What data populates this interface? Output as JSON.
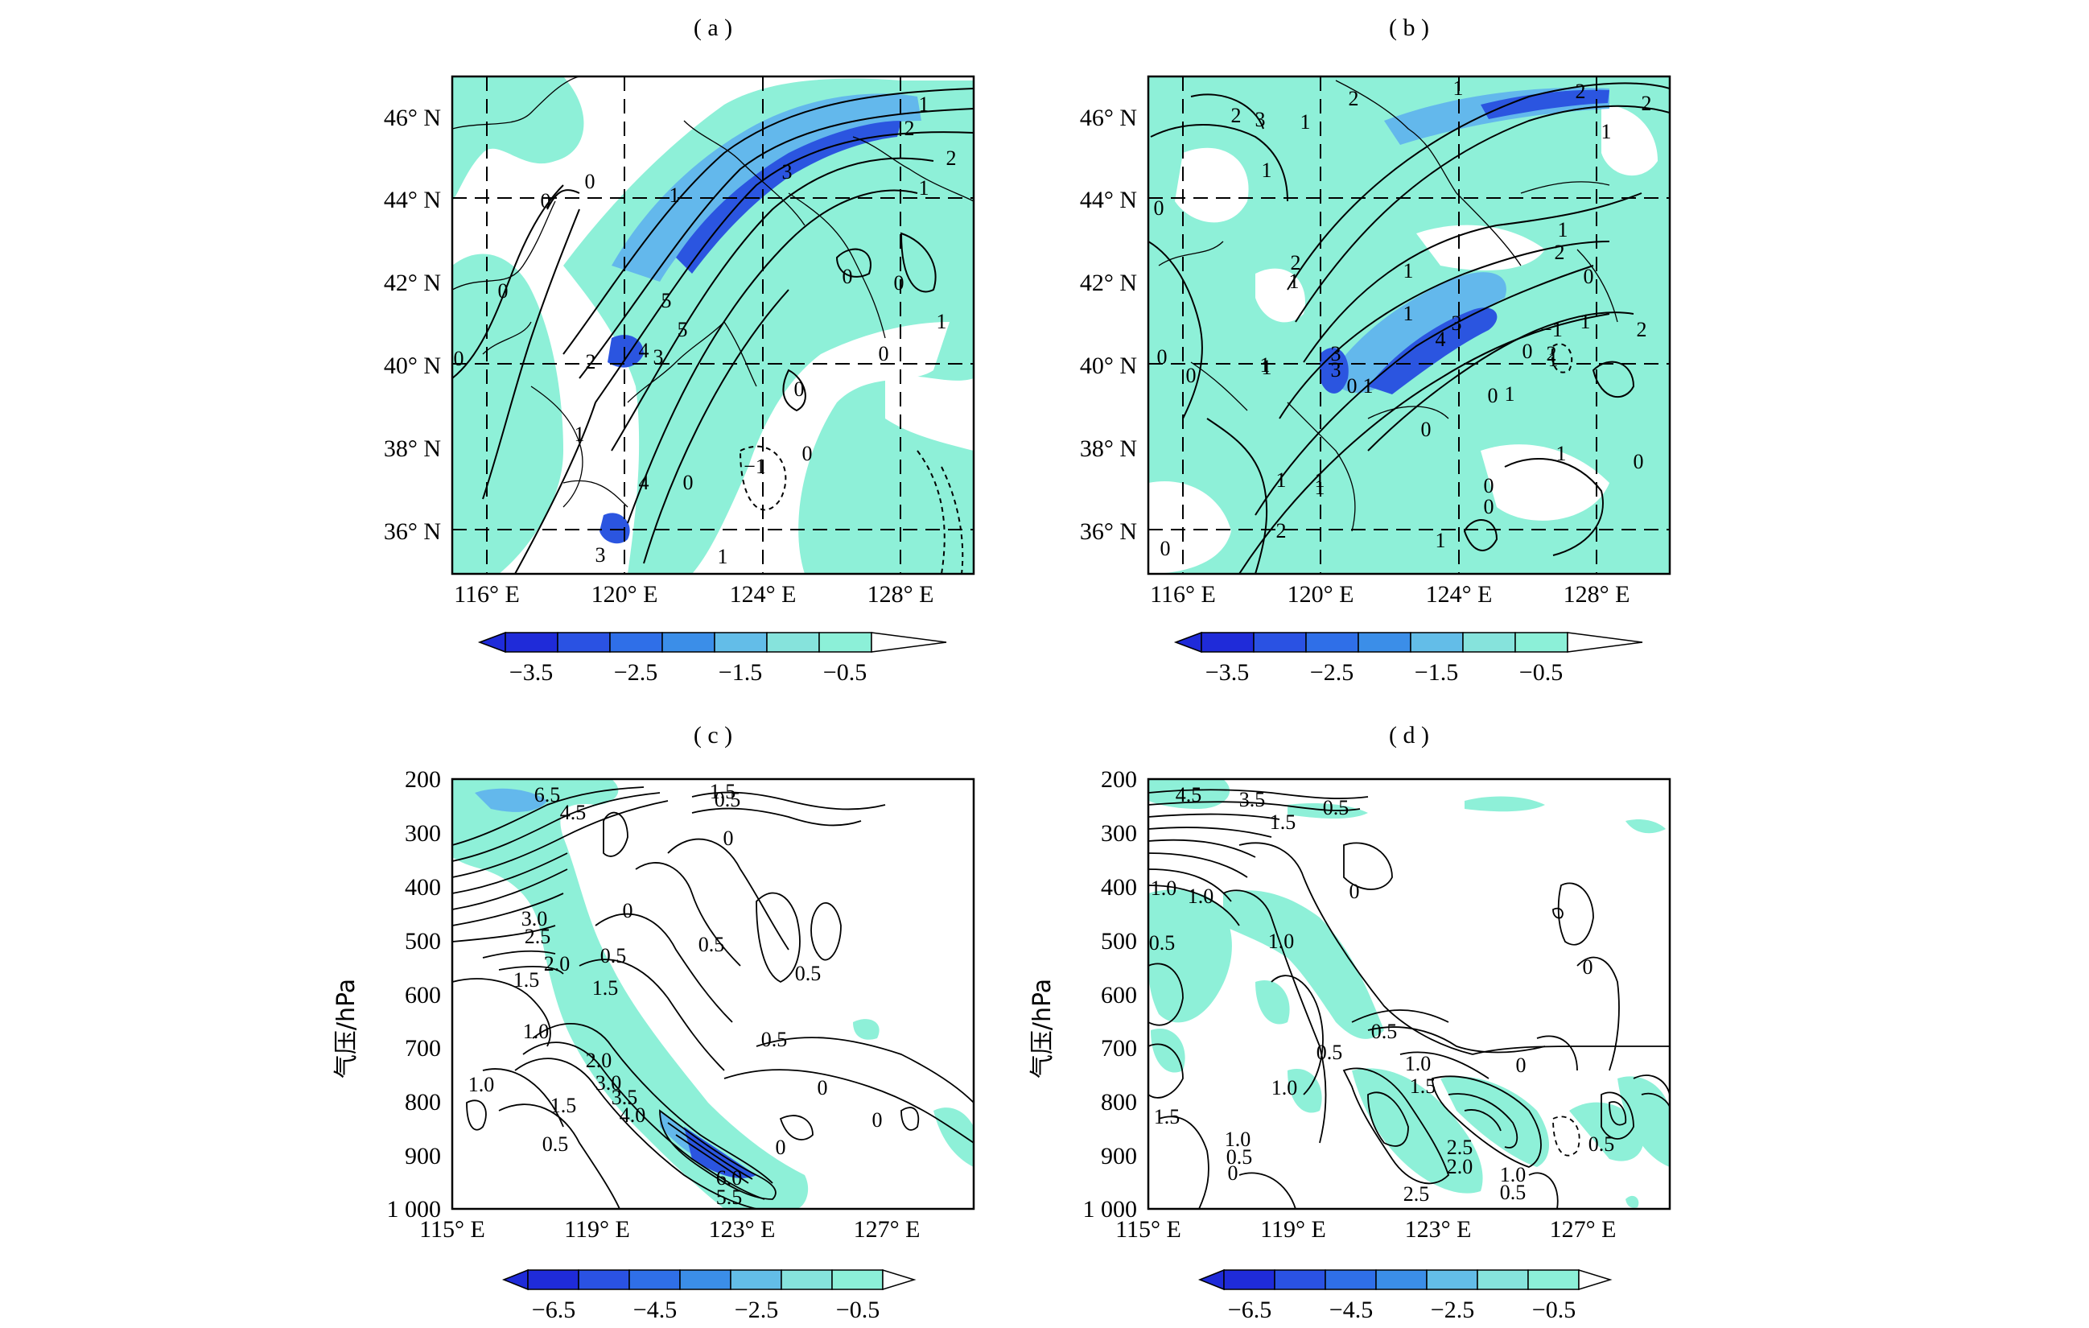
{
  "colors": {
    "levels": [
      "#1f2bd9",
      "#2a52e3",
      "#2f6fe8",
      "#3b8ee8",
      "#63bde8",
      "#86e3dc",
      "#8cf0d8"
    ],
    "shade": "#8ef0d8",
    "mid": "#63b8ec",
    "dark": "#2b55e0"
  },
  "panels": {
    "a": {
      "title": "( a )",
      "x_ticks": [
        "116° E",
        "120° E",
        "124° E",
        "128° E"
      ],
      "y_ticks": [
        "46° N",
        "44° N",
        "42° N",
        "40° N",
        "38° N",
        "36° N"
      ],
      "colorbar": [
        "−3.5",
        "−2.5",
        "−1.5",
        "−0.5"
      ],
      "contour_labels": [
        "1",
        "2",
        "2",
        "1",
        "3",
        "0",
        "0",
        "1",
        "0",
        "5",
        "0",
        "1",
        "0",
        "0",
        "5",
        "4",
        "3",
        "2",
        "0",
        "0",
        "1",
        "−1",
        "0",
        "0",
        "4",
        "3",
        "1"
      ]
    },
    "b": {
      "title": "( b )",
      "x_ticks": [
        "116° E",
        "120° E",
        "124° E",
        "128° E"
      ],
      "y_ticks": [
        "46° N",
        "44° N",
        "42° N",
        "40° N",
        "38° N",
        "36° N"
      ],
      "colorbar": [
        "−3.5",
        "−2.5",
        "−1.5",
        "−0.5"
      ],
      "contour_labels": [
        "2",
        "3",
        "1",
        "2",
        "1",
        "2",
        "1",
        "1",
        "0",
        "2",
        "1",
        "1",
        "1",
        "2",
        "2",
        "1",
        "0",
        "1",
        "3",
        "4",
        "3",
        "−1",
        "2",
        "1",
        "1",
        "2",
        "0",
        "0",
        "1",
        "3",
        "0",
        "1",
        "0",
        "1",
        "0",
        "0",
        "1",
        "1",
        "1",
        "0",
        "0",
        "1",
        "2",
        "0",
        "0",
        "1"
      ]
    },
    "c": {
      "title": "( c )",
      "y_label": "气压/hPa",
      "x_ticks": [
        "115° E",
        "119° E",
        "123° E",
        "127° E"
      ],
      "y_ticks": [
        "200",
        "300",
        "400",
        "500",
        "600",
        "700",
        "800",
        "900",
        "1 000"
      ],
      "colorbar": [
        "−6.5",
        "−4.5",
        "−2.5",
        "−0.5"
      ],
      "contour_labels": [
        "6.5",
        "4.5",
        "1.5",
        "0.5",
        "0",
        "0",
        "3.0",
        "2.5",
        "2.0",
        "1.5",
        "0.5",
        "0.5",
        "0.5",
        "1.5",
        "1.0",
        "0.5",
        "2.0",
        "3.0",
        "3.5",
        "4.0",
        "1.0",
        "1.5",
        "0.5",
        "0",
        "0",
        "6.0",
        "5.5",
        "0"
      ]
    },
    "d": {
      "title": "( d )",
      "y_label": "气压/hPa",
      "x_ticks": [
        "115° E",
        "119° E",
        "123° E",
        "127° E"
      ],
      "y_ticks": [
        "200",
        "300",
        "400",
        "500",
        "600",
        "700",
        "800",
        "900",
        "1 000"
      ],
      "colorbar": [
        "−6.5",
        "−4.5",
        "−2.5",
        "−0.5"
      ],
      "contour_labels": [
        "4.5",
        "3.5",
        "1.5",
        "0.5",
        "1.0",
        "1.0",
        "0.5",
        "1.0",
        "0",
        "0",
        "0.5",
        "1.0",
        "0.5",
        "0",
        "1.0",
        "1.5",
        "1.5",
        "1.0",
        "0.5",
        "2.5",
        "2.0",
        "1.0",
        "0.5",
        "2.5",
        "0",
        "0.5"
      ]
    }
  }
}
